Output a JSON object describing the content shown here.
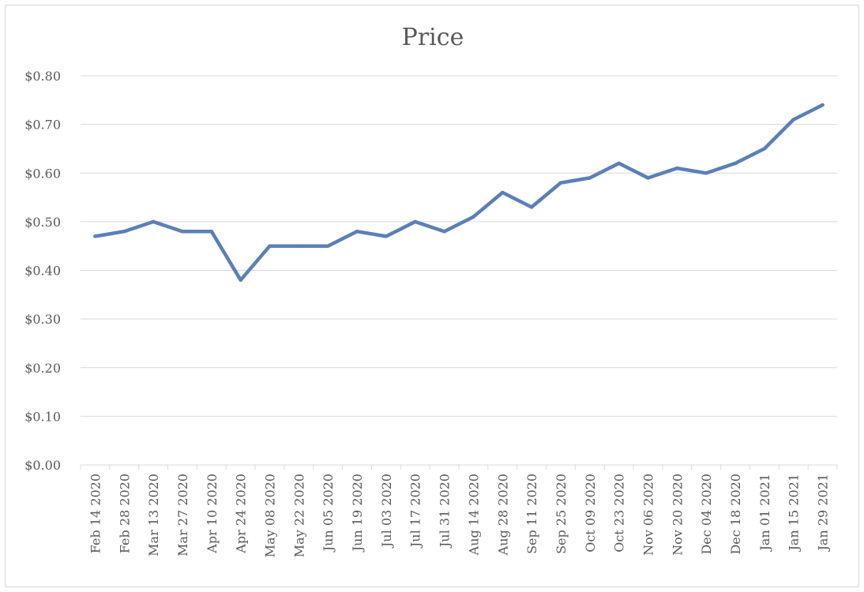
{
  "chart_data": {
    "type": "line",
    "title": "Price",
    "xlabel": "",
    "ylabel": "",
    "categories": [
      "Feb 14 2020",
      "Feb 28 2020",
      "Mar 13 2020",
      "Mar 27 2020",
      "Apr 10 2020",
      "Apr 24 2020",
      "May 08 2020",
      "May 22 2020",
      "Jun 05 2020",
      "Jun 19 2020",
      "Jul 03 2020",
      "Jul 17 2020",
      "Jul 31 2020",
      "Aug 14 2020",
      "Aug 28 2020",
      "Sep 11 2020",
      "Sep 25 2020",
      "Oct 09 2020",
      "Oct 23 2020",
      "Nov 06 2020",
      "Nov 20 2020",
      "Dec 04 2020",
      "Dec 18 2020",
      "Jan 01 2021",
      "Jan 15 2021",
      "Jan 29 2021"
    ],
    "series": [
      {
        "values": [
          0.47,
          0.48,
          0.5,
          0.48,
          0.48,
          0.38,
          0.45,
          0.45,
          0.45,
          0.48,
          0.47,
          0.5,
          0.48,
          0.51,
          0.56,
          0.53,
          0.58,
          0.59,
          0.62,
          0.59,
          0.61,
          0.6,
          0.62,
          0.65,
          0.71,
          0.74
        ],
        "color": "#5b7fb9"
      }
    ],
    "ylim": [
      0,
      0.8
    ],
    "yticks": [
      "$0.00",
      "$0.10",
      "$0.20",
      "$0.30",
      "$0.40",
      "$0.50",
      "$0.60",
      "$0.70",
      "$0.80"
    ],
    "grid": true,
    "legend": "none"
  }
}
